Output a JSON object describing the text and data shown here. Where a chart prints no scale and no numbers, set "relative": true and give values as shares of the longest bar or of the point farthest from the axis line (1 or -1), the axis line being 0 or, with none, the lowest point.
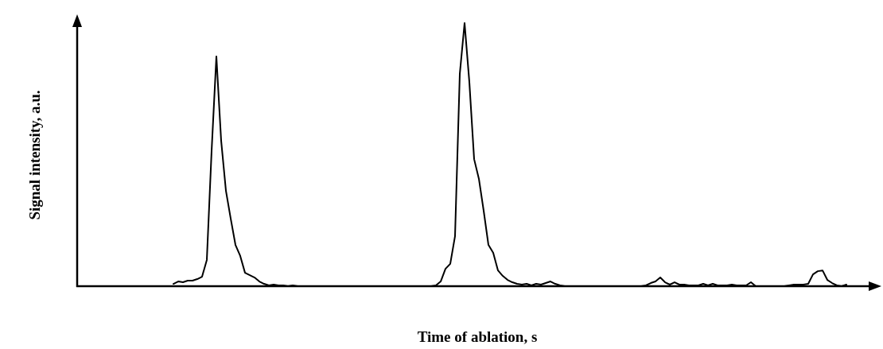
{
  "chart_data": {
    "type": "line",
    "relative": true,
    "xlabel": "Time of ablation, s",
    "ylabel": "Signal intensity, a.u.",
    "color": "#000000",
    "categories": [
      null,
      null,
      null,
      null,
      null,
      null,
      null,
      null,
      null,
      null,
      null,
      null,
      null,
      null,
      null,
      null,
      null,
      null,
      null,
      null,
      null,
      null,
      null,
      null,
      null,
      null,
      null,
      null,
      null,
      null,
      null,
      null,
      null,
      null,
      null,
      null,
      null,
      null,
      null,
      null,
      null,
      null,
      null,
      null,
      null,
      null,
      null,
      null,
      null,
      null,
      null,
      null,
      null,
      null,
      null,
      null,
      null,
      null,
      null,
      null,
      null,
      null,
      null,
      null,
      null,
      null,
      null,
      null,
      null,
      null,
      null,
      null,
      null,
      null,
      null,
      null,
      null,
      null,
      null,
      null,
      null,
      null,
      null,
      null,
      null,
      null,
      null,
      null,
      null,
      null,
      null,
      null,
      null,
      null,
      null,
      null,
      null,
      null,
      null,
      null,
      null,
      null,
      null,
      null,
      null,
      null,
      null,
      null,
      null,
      null,
      null,
      null,
      null,
      null,
      null,
      null,
      null,
      null,
      null,
      null,
      null,
      null,
      null,
      null,
      null,
      null,
      null,
      null,
      null,
      null,
      null,
      null,
      null,
      null,
      null,
      null,
      null,
      null,
      null,
      null,
      null,
      null,
      null,
      null,
      null,
      null,
      null,
      null,
      null,
      null,
      null,
      null,
      null,
      null,
      null,
      null,
      null,
      null,
      null,
      null,
      null,
      null,
      null,
      null,
      null,
      null,
      null,
      null
    ],
    "values": [
      null,
      null,
      null,
      null,
      null,
      null,
      null,
      null,
      null,
      null,
      null,
      null,
      null,
      null,
      null,
      null,
      null,
      null,
      null,
      null,
      0.009,
      0.018,
      0.015,
      0.021,
      0.021,
      0.027,
      0.036,
      0.1,
      0.514,
      0.873,
      0.553,
      0.363,
      0.257,
      0.157,
      0.115,
      0.051,
      0.042,
      0.033,
      0.018,
      0.009,
      0.003,
      0.006,
      0.003,
      0.003,
      0,
      0.003,
      0,
      0,
      0,
      0,
      0,
      0,
      0,
      0,
      0,
      0,
      0,
      0,
      0,
      0,
      0,
      0,
      0,
      0,
      0,
      0,
      0,
      0,
      0,
      0,
      0,
      0,
      0,
      0,
      0,
      0.003,
      0.018,
      0.066,
      0.085,
      0.19,
      0.807,
      1,
      0.776,
      0.483,
      0.408,
      0.287,
      0.157,
      0.127,
      0.06,
      0.039,
      0.024,
      0.015,
      0.009,
      0.006,
      0.009,
      0.003,
      0.009,
      0.006,
      0.012,
      0.018,
      0.009,
      0.003,
      0,
      0,
      0,
      0,
      0,
      0,
      0,
      0,
      0,
      0,
      0,
      0,
      0,
      0,
      0,
      0,
      0,
      0.003,
      0.012,
      0.018,
      0.033,
      0.015,
      0.006,
      0.015,
      0.006,
      0.006,
      0.003,
      0.003,
      0.003,
      0.009,
      0.003,
      0.009,
      0.003,
      0.003,
      0.003,
      0.006,
      0.003,
      0.003,
      0.003,
      0.015,
      0,
      0,
      0,
      0,
      0,
      0,
      0,
      0.003,
      0.006,
      0.006,
      0.006,
      0.009,
      0.045,
      0.057,
      0.06,
      0.024,
      0.012,
      0.003,
      0,
      0.006,
      null,
      null,
      null,
      null,
      null,
      null
    ]
  }
}
